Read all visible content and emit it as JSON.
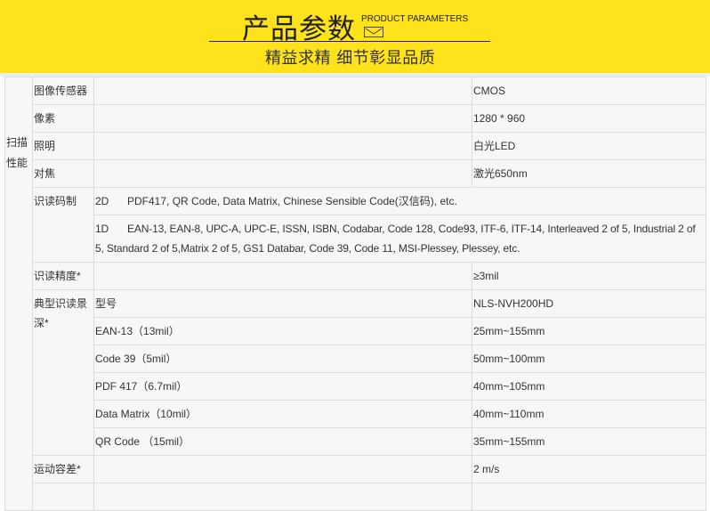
{
  "header": {
    "title": "产品参数",
    "title_en": "PRODUCT PARAMETERS",
    "subtitle": "精益求精 细节彰显品质",
    "bg_color": "#FEE21C",
    "icon": "envelope-icon"
  },
  "table": {
    "category": "扫描性能",
    "rows": [
      {
        "label": "图像传感器",
        "value": "CMOS"
      },
      {
        "label": "像素",
        "value": "1280 * 960"
      },
      {
        "label": "照明",
        "value": "白光LED"
      },
      {
        "label": "对焦",
        "value": "激光650nm"
      }
    ],
    "symbology": {
      "label": "识读码制",
      "d2": {
        "type": "2D",
        "text": "PDF417, QR Code, Data Matrix, Chinese Sensible Code(汉信码), etc."
      },
      "d1": {
        "type": "1D",
        "text": "EAN-13, EAN-8, UPC-A, UPC-E, ISSN, ISBN, Codabar, Code 128, Code93, ITF-6, ITF-14, Interleaved 2 of 5, Industrial 2 of 5, Standard 2 of 5,Matrix 2 of 5, GS1 Databar, Code 39, Code 11, MSI-Plessey, Plessey, etc."
      }
    },
    "precision": {
      "label": "识读精度*",
      "value": "≥3mil"
    },
    "depth": {
      "label": "典型识读景深*",
      "rows": [
        {
          "name": "型号",
          "value": "NLS-NVH200HD"
        },
        {
          "name": "EAN-13（13mil）",
          "value": "25mm~155mm"
        },
        {
          "name": "Code 39（5mil）",
          "value": "50mm~100mm"
        },
        {
          "name": "PDF 417（6.7mil）",
          "value": "40mm~105mm"
        },
        {
          "name": "Data Matrix（10mil）",
          "value": "40mm~110mm"
        },
        {
          "name": "QR Code （15mil）",
          "value": "35mm~155mm"
        }
      ]
    },
    "motion": {
      "label": "运动容差*",
      "value": "2 m/s"
    }
  }
}
